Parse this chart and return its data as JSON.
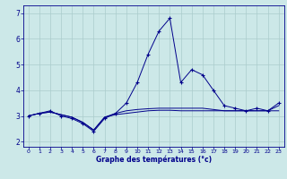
{
  "xlabel": "Graphe des températures (°c)",
  "bg_color": "#cce8e8",
  "grid_color": "#aacccc",
  "line_color": "#00008b",
  "xlim": [
    -0.5,
    23.5
  ],
  "ylim": [
    1.8,
    7.3
  ],
  "xticks": [
    0,
    1,
    2,
    3,
    4,
    5,
    6,
    7,
    8,
    9,
    10,
    11,
    12,
    13,
    14,
    15,
    16,
    17,
    18,
    19,
    20,
    21,
    22,
    23
  ],
  "yticks": [
    2,
    3,
    4,
    5,
    6,
    7
  ],
  "series": [
    {
      "x": [
        0,
        1,
        2,
        3,
        4,
        5,
        6,
        7,
        8,
        9,
        10,
        11,
        12,
        13,
        14,
        15,
        16,
        17,
        18,
        19,
        20,
        21,
        22,
        23
      ],
      "y": [
        3.0,
        3.1,
        3.2,
        3.0,
        2.9,
        2.7,
        2.4,
        2.9,
        3.1,
        3.5,
        4.3,
        5.4,
        6.3,
        6.8,
        4.3,
        4.8,
        4.6,
        4.0,
        3.4,
        3.3,
        3.2,
        3.3,
        3.2,
        3.5
      ],
      "marker": "+"
    },
    {
      "x": [
        0,
        1,
        2,
        3,
        4,
        5,
        6,
        7,
        8,
        9,
        10,
        11,
        12,
        13,
        14,
        15,
        16,
        17,
        18,
        19,
        20,
        21,
        22,
        23
      ],
      "y": [
        3.0,
        3.1,
        3.15,
        3.05,
        2.95,
        2.75,
        2.45,
        2.95,
        3.05,
        3.1,
        3.15,
        3.2,
        3.22,
        3.22,
        3.2,
        3.2,
        3.2,
        3.2,
        3.2,
        3.2,
        3.2,
        3.2,
        3.2,
        3.2
      ],
      "marker": null
    },
    {
      "x": [
        0,
        1,
        2,
        3,
        4,
        5,
        6,
        7,
        8,
        9,
        10,
        11,
        12,
        13,
        14,
        15,
        16,
        17,
        18,
        19,
        20,
        21,
        22,
        23
      ],
      "y": [
        3.0,
        3.1,
        3.15,
        3.05,
        2.95,
        2.75,
        2.45,
        2.95,
        3.1,
        3.2,
        3.25,
        3.28,
        3.3,
        3.3,
        3.3,
        3.3,
        3.3,
        3.25,
        3.2,
        3.2,
        3.2,
        3.2,
        3.2,
        3.4
      ],
      "marker": null
    }
  ]
}
